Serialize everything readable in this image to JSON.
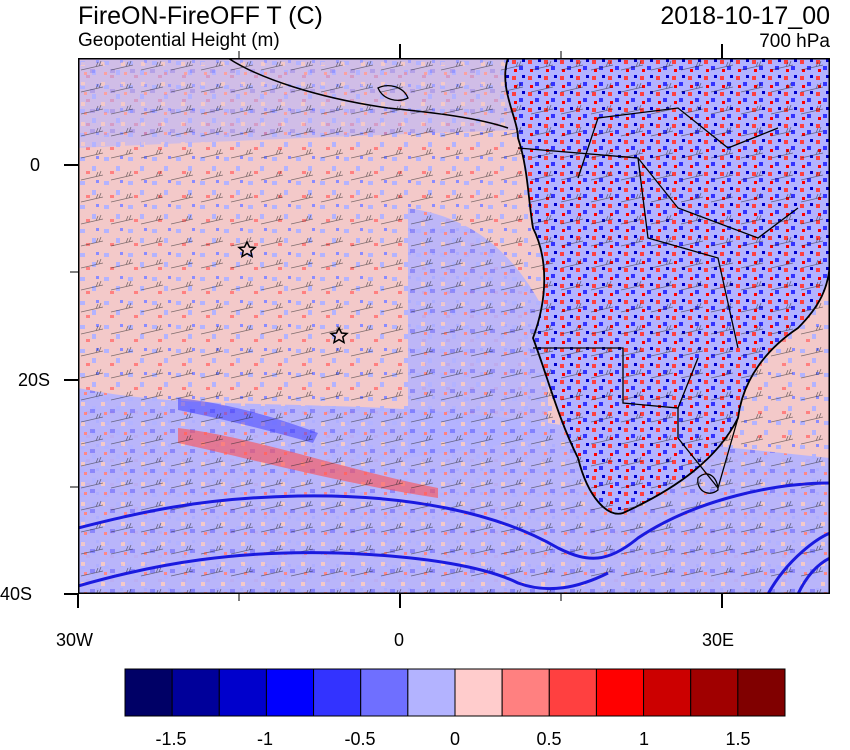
{
  "header": {
    "title": "FireON-FireOFF T (C)",
    "subtitle": "Geopotential Height (m)",
    "datetime": "2018-10-17_00",
    "level": "700 hPa"
  },
  "axes": {
    "lat_labels": [
      "0",
      "20S",
      "40S"
    ],
    "lon_labels": [
      "30W",
      "0",
      "30E"
    ]
  },
  "colorbar": {
    "labels": [
      "-1.5",
      "-1",
      "-0.5",
      "0",
      "0.5",
      "1",
      "1.5"
    ],
    "colors": [
      "#000066",
      "#00009a",
      "#0000cc",
      "#0000ff",
      "#3333ff",
      "#6f6fff",
      "#b3b3ff",
      "#ffcccc",
      "#ff8080",
      "#ff4040",
      "#ff0000",
      "#cc0000",
      "#a00000",
      "#800000"
    ]
  },
  "map": {
    "land_outline_color": "#000000",
    "contour_color": "#1a1adf",
    "markers": [
      "star",
      "star"
    ]
  }
}
